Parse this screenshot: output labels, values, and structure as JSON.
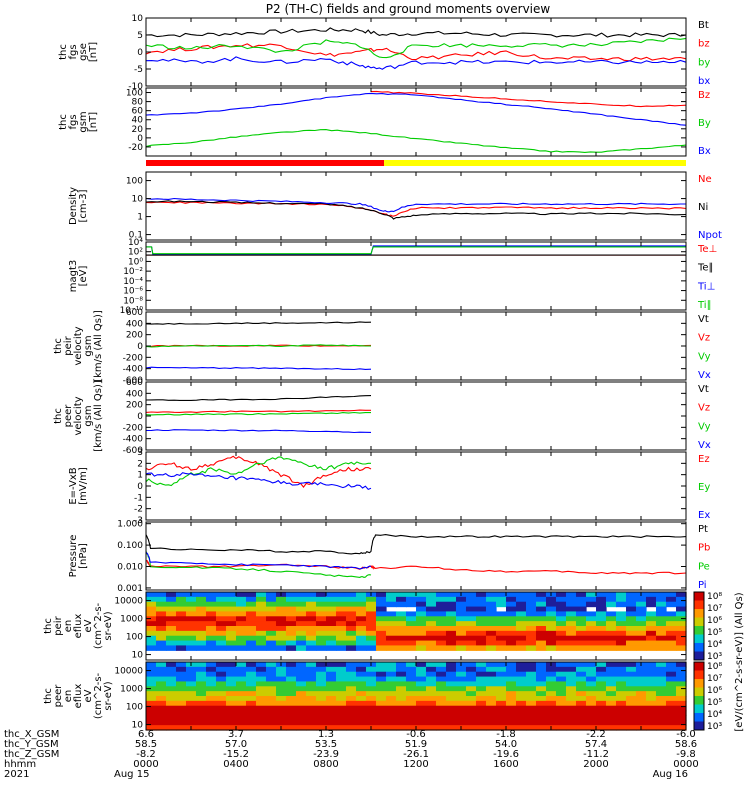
{
  "title": "P2 (TH-C) fields and ground moments overview",
  "year": "2021",
  "chart_data": [
    {
      "type": "line",
      "panel_label": [
        "thc",
        "fgs",
        "gse",
        "[nT]"
      ],
      "y_ticks": [
        "10",
        "5",
        "0",
        "-5",
        "-10"
      ],
      "ylim": [
        -10,
        10
      ],
      "legend": [
        "Bt",
        "bz",
        "by",
        "bx"
      ],
      "series": [
        {
          "name": "Bt",
          "color": "#000000",
          "x": [
            0,
            2,
            4,
            6,
            8,
            9.5,
            10.5,
            12,
            14,
            16,
            18,
            20,
            22,
            24
          ],
          "y": [
            5,
            5,
            5.5,
            6,
            6.5,
            6.5,
            5,
            5.5,
            5.5,
            5,
            5,
            5,
            5,
            5
          ]
        },
        {
          "name": "bz",
          "color": "#ff0000",
          "x": [
            0,
            2,
            4,
            6,
            8,
            9.5,
            10.5,
            12,
            14,
            16,
            18,
            20,
            22,
            24
          ],
          "y": [
            0,
            1,
            2,
            2,
            -1,
            0,
            1,
            -2,
            -1,
            0,
            -2,
            -2,
            -2,
            -2
          ]
        },
        {
          "name": "by",
          "color": "#00cc00",
          "x": [
            0,
            2,
            4,
            6,
            8,
            9.5,
            10.5,
            12,
            14,
            16,
            18,
            20,
            22,
            24
          ],
          "y": [
            2,
            1,
            2,
            0,
            3,
            2,
            -2,
            2,
            2,
            2,
            2,
            2,
            3,
            4
          ]
        },
        {
          "name": "bx",
          "color": "#0000ff",
          "x": [
            0,
            2,
            4,
            6,
            8,
            9.5,
            10.5,
            12,
            14,
            16,
            18,
            20,
            22,
            24
          ],
          "y": [
            -2,
            -3,
            -2,
            -3,
            -2,
            -4,
            -5,
            -3,
            -3,
            -3,
            -3,
            -3,
            -3,
            -3
          ]
        }
      ]
    },
    {
      "type": "line",
      "panel_label": [
        "thc",
        "fgs",
        "gsm",
        "[nT]"
      ],
      "y_ticks": [
        "100",
        "80",
        "60",
        "40",
        "20",
        "0",
        "-20"
      ],
      "ylim": [
        -40,
        110
      ],
      "legend": [
        "Bz",
        "By",
        "Bx"
      ],
      "series": [
        {
          "name": "Bz",
          "color": "#ff0000",
          "x": [
            10,
            12,
            14,
            16,
            18,
            20,
            22,
            24
          ],
          "y": [
            102,
            98,
            92,
            86,
            80,
            74,
            70,
            72
          ]
        },
        {
          "name": "By",
          "color": "#00cc00",
          "x": [
            0,
            2,
            4,
            6,
            8,
            10,
            12,
            14,
            16,
            18,
            20,
            22,
            24
          ],
          "y": [
            -18,
            -10,
            2,
            12,
            18,
            10,
            -2,
            -12,
            -22,
            -30,
            -32,
            -24,
            -16
          ]
        },
        {
          "name": "Bx",
          "color": "#0000ff",
          "x": [
            0,
            2,
            4,
            6,
            8,
            10,
            12,
            14,
            16,
            18,
            20,
            22,
            24
          ],
          "y": [
            50,
            55,
            63,
            75,
            88,
            98,
            95,
            84,
            74,
            64,
            52,
            40,
            28
          ]
        }
      ]
    },
    {
      "type": "line",
      "panel_label": [
        "Density",
        "[cm-3]"
      ],
      "y_ticks": [
        "100",
        "10",
        "1",
        "0.1"
      ],
      "ylim": [
        0.05,
        300
      ],
      "scale": "log",
      "legend": [
        "Ne",
        "Ni",
        "Npot"
      ],
      "series": [
        {
          "name": "Ne",
          "color": "#ff0000",
          "x": [
            0,
            2,
            4,
            6,
            8,
            9.5,
            10.5,
            11,
            12,
            14,
            16,
            18,
            20,
            22,
            24
          ],
          "y": [
            6,
            6,
            5.5,
            5,
            5,
            3,
            1.5,
            1,
            3,
            3,
            3.2,
            3,
            3,
            3,
            2.8
          ]
        },
        {
          "name": "Ni",
          "color": "#000000",
          "x": [
            0,
            2,
            4,
            6,
            8,
            9.5,
            10.5,
            11,
            12,
            14,
            16,
            18,
            20,
            22,
            24
          ],
          "y": [
            7,
            7,
            6,
            5.5,
            5,
            3,
            1.5,
            0.8,
            1.2,
            1.5,
            1.5,
            1.4,
            1.5,
            1.5,
            1.3
          ]
        },
        {
          "name": "Npot",
          "color": "#0000ff",
          "x": [
            0,
            2,
            4,
            6,
            8,
            9.5,
            10.5,
            11,
            12,
            14,
            16,
            18,
            20,
            22,
            24
          ],
          "y": [
            10,
            9,
            8,
            7,
            6,
            5,
            2,
            2,
            5,
            5,
            5,
            5,
            5,
            5,
            5
          ]
        }
      ]
    },
    {
      "type": "line",
      "panel_label": [
        "magt3",
        "[eV]"
      ],
      "y_ticks": [
        "10⁴",
        "10²",
        "10⁰",
        "10⁻²",
        "10⁻⁴",
        "10⁻⁶",
        "10⁻⁸",
        "10⁻¹⁰"
      ],
      "ylim": [
        -10,
        4
      ],
      "scale": "log",
      "legend": [
        "Te⊥",
        "Te∥",
        "Ti⊥",
        "Ti∥"
      ],
      "series": [
        {
          "name": "Te⊥",
          "color": "#ff0000",
          "x": [
            0,
            24
          ],
          "y": [
            1.3,
            1.3
          ]
        },
        {
          "name": "Te∥",
          "color": "#000000",
          "x": [
            0,
            24
          ],
          "y": [
            1.3,
            1.3
          ]
        },
        {
          "name": "Ti⊥",
          "color": "#0000ff",
          "x": [
            0,
            0.25,
            0.3,
            10,
            10.1,
            24
          ],
          "y": [
            3.0,
            3.0,
            1.5,
            1.5,
            3.2,
            3.2
          ]
        },
        {
          "name": "Ti∥",
          "color": "#00cc00",
          "x": [
            0,
            0.25,
            0.3,
            10,
            10.1,
            24
          ],
          "y": [
            3.0,
            3.0,
            1.6,
            1.6,
            3.0,
            3.0
          ]
        }
      ]
    },
    {
      "type": "line",
      "panel_label": [
        "thc",
        "peir",
        "velocity",
        "gsm",
        "[km/s (All Qs)]"
      ],
      "y_ticks": [
        "600",
        "400",
        "200",
        "0",
        "-200",
        "-400",
        "-600"
      ],
      "ylim": [
        -600,
        600
      ],
      "legend": [
        "Vt",
        "Vz",
        "Vy",
        "Vx"
      ],
      "series": [
        {
          "name": "Vt",
          "color": "#000000",
          "x": [
            0,
            2,
            4,
            6,
            8,
            10
          ],
          "y": [
            390,
            395,
            400,
            405,
            410,
            420
          ]
        },
        {
          "name": "Vz",
          "color": "#ff0000",
          "x": [
            0,
            2,
            4,
            6,
            8,
            10
          ],
          "y": [
            0,
            5,
            0,
            10,
            0,
            10
          ]
        },
        {
          "name": "Vy",
          "color": "#00cc00",
          "x": [
            0,
            2,
            4,
            6,
            8,
            10
          ],
          "y": [
            -10,
            0,
            10,
            0,
            20,
            0
          ]
        },
        {
          "name": "Vx",
          "color": "#0000ff",
          "x": [
            0,
            2,
            4,
            6,
            8,
            10
          ],
          "y": [
            -380,
            -385,
            -390,
            -395,
            -400,
            -410
          ]
        }
      ]
    },
    {
      "type": "line",
      "panel_label": [
        "thc",
        "peer",
        "velocity",
        "gsm",
        "[km/s (All Qs)]"
      ],
      "y_ticks": [
        "600",
        "400",
        "200",
        "0",
        "-200",
        "-400",
        "-600"
      ],
      "ylim": [
        -600,
        600
      ],
      "legend": [
        "Vt",
        "Vz",
        "Vy",
        "Vx"
      ],
      "series": [
        {
          "name": "Vt",
          "color": "#000000",
          "x": [
            0,
            2,
            4,
            6,
            8,
            10
          ],
          "y": [
            280,
            280,
            290,
            300,
            330,
            360
          ]
        },
        {
          "name": "Vz",
          "color": "#ff0000",
          "x": [
            0,
            2,
            4,
            6,
            8,
            10
          ],
          "y": [
            70,
            70,
            80,
            80,
            90,
            100
          ]
        },
        {
          "name": "Vy",
          "color": "#00cc00",
          "x": [
            0,
            2,
            4,
            6,
            8,
            10
          ],
          "y": [
            20,
            30,
            30,
            40,
            50,
            60
          ]
        },
        {
          "name": "Vx",
          "color": "#0000ff",
          "x": [
            0,
            2,
            4,
            6,
            8,
            10
          ],
          "y": [
            -250,
            -250,
            -255,
            -260,
            -270,
            -290
          ]
        }
      ]
    },
    {
      "type": "line",
      "panel_label": [
        "E=-VxB",
        "[mV/m]"
      ],
      "y_ticks": [
        "3",
        "2",
        "1",
        "0",
        "-1",
        "-2",
        "-3"
      ],
      "ylim": [
        -3,
        3
      ],
      "legend": [
        "Ez",
        "Ey",
        "Ex"
      ],
      "series": [
        {
          "name": "Ez",
          "color": "#ff0000",
          "x": [
            0,
            1,
            2,
            3,
            4,
            5,
            6,
            7,
            8,
            9,
            10
          ],
          "y": [
            1.5,
            2,
            1.5,
            2,
            2.5,
            2,
            1,
            0,
            1,
            1.5,
            1.5
          ]
        },
        {
          "name": "Ey",
          "color": "#00cc00",
          "x": [
            0,
            1,
            2,
            3,
            4,
            5,
            6,
            7,
            8,
            9,
            10
          ],
          "y": [
            0.5,
            0,
            1,
            1.5,
            1,
            2,
            2.5,
            2,
            1.5,
            2,
            2
          ]
        },
        {
          "name": "Ex",
          "color": "#0000ff",
          "x": [
            0,
            1,
            2,
            3,
            4,
            5,
            6,
            7,
            8,
            9,
            10
          ],
          "y": [
            1,
            1,
            1,
            0.8,
            0.7,
            0.5,
            0.3,
            0.2,
            0.1,
            0,
            -0.2
          ]
        }
      ]
    },
    {
      "type": "line",
      "panel_label": [
        "Pressure",
        "[nPa]"
      ],
      "y_ticks": [
        "1.000",
        "0.100",
        "0.010",
        "0.001"
      ],
      "ylim": [
        0.0008,
        1.2
      ],
      "scale": "log",
      "legend": [
        "Pt",
        "Pb",
        "Pe",
        "Pi"
      ],
      "series": [
        {
          "name": "Pt",
          "color": "#000000",
          "x": [
            0,
            0.2,
            2,
            4,
            6,
            8,
            9.5,
            10,
            10.2,
            12,
            14,
            16,
            18,
            20,
            22,
            24
          ],
          "y": [
            0.3,
            0.07,
            0.06,
            0.06,
            0.05,
            0.05,
            0.04,
            0.05,
            0.3,
            0.25,
            0.25,
            0.25,
            0.25,
            0.25,
            0.25,
            0.25
          ]
        },
        {
          "name": "Pb",
          "color": "#ff0000",
          "x": [
            0,
            0.2,
            2,
            4,
            6,
            8,
            9.5,
            10,
            10.2,
            12,
            14,
            16,
            18,
            20,
            22,
            24
          ],
          "y": [
            0.02,
            0.01,
            0.01,
            0.01,
            0.012,
            0.01,
            0.008,
            0.01,
            0.008,
            0.01,
            0.007,
            0.006,
            0.006,
            0.005,
            0.005,
            0.005
          ]
        },
        {
          "name": "Pe",
          "color": "#00cc00",
          "x": [
            0,
            0.2,
            2,
            4,
            6,
            8,
            9.5,
            10
          ],
          "y": [
            0.05,
            0.01,
            0.009,
            0.008,
            0.006,
            0.004,
            0.003,
            0.004
          ]
        },
        {
          "name": "Pi",
          "color": "#0000ff",
          "x": [
            0,
            0.2,
            2,
            4,
            6,
            8,
            9.5,
            10
          ],
          "y": [
            0.05,
            0.015,
            0.015,
            0.012,
            0.012,
            0.01,
            0.008,
            0.01
          ]
        }
      ]
    },
    {
      "type": "heatmap",
      "panel_label": [
        "thc",
        "peir",
        "en",
        "eflux",
        "eV",
        "(cm^2-s-",
        "sr-eV)"
      ],
      "y_ticks": [
        "10000",
        "1000",
        "100",
        "10"
      ],
      "ylim": [
        5,
        30000
      ],
      "scale": "log",
      "colorbar_ticks": [
        "10⁸",
        "10⁷",
        "10⁶",
        "10⁵",
        "10⁴",
        "10³"
      ],
      "colorbar_label": "[eV/(cm^2-s-sr-eV)] (All Qs)"
    },
    {
      "type": "heatmap",
      "panel_label": [
        "thc",
        "peer",
        "en",
        "eflux",
        "eV",
        "(cm^2-s-",
        "sr-eV)"
      ],
      "y_ticks": [
        "10000",
        "1000",
        "100",
        "10"
      ],
      "ylim": [
        5,
        30000
      ],
      "scale": "log",
      "colorbar_ticks": [
        "10⁸",
        "10⁷",
        "10⁶",
        "10⁵",
        "10⁴",
        "10³"
      ]
    }
  ],
  "ephemeris": {
    "row_labels": [
      "thc_X_GSM",
      "thc_Y_GSM",
      "thc_Z_GSM",
      "hhmm",
      "2021"
    ],
    "columns": [
      {
        "x": 0,
        "vals": [
          "6.6",
          "58.5",
          "-8.2",
          "0000",
          "Aug 15"
        ]
      },
      {
        "x": 4,
        "vals": [
          "3.7",
          "57.0",
          "-15.2",
          "0400",
          ""
        ]
      },
      {
        "x": 8,
        "vals": [
          "1.3",
          "53.5",
          "-23.9",
          "0800",
          ""
        ]
      },
      {
        "x": 12,
        "vals": [
          "-0.6",
          "51.9",
          "-26.1",
          "1200",
          ""
        ]
      },
      {
        "x": 16,
        "vals": [
          "-1.8",
          "54.0",
          "-19.6",
          "1600",
          ""
        ]
      },
      {
        "x": 20,
        "vals": [
          "-2.2",
          "57.4",
          "-11.2",
          "2000",
          ""
        ]
      },
      {
        "x": 24,
        "vals": [
          "-6.0",
          "58.6",
          "-9.8",
          "0000",
          "Aug 16"
        ]
      }
    ]
  }
}
